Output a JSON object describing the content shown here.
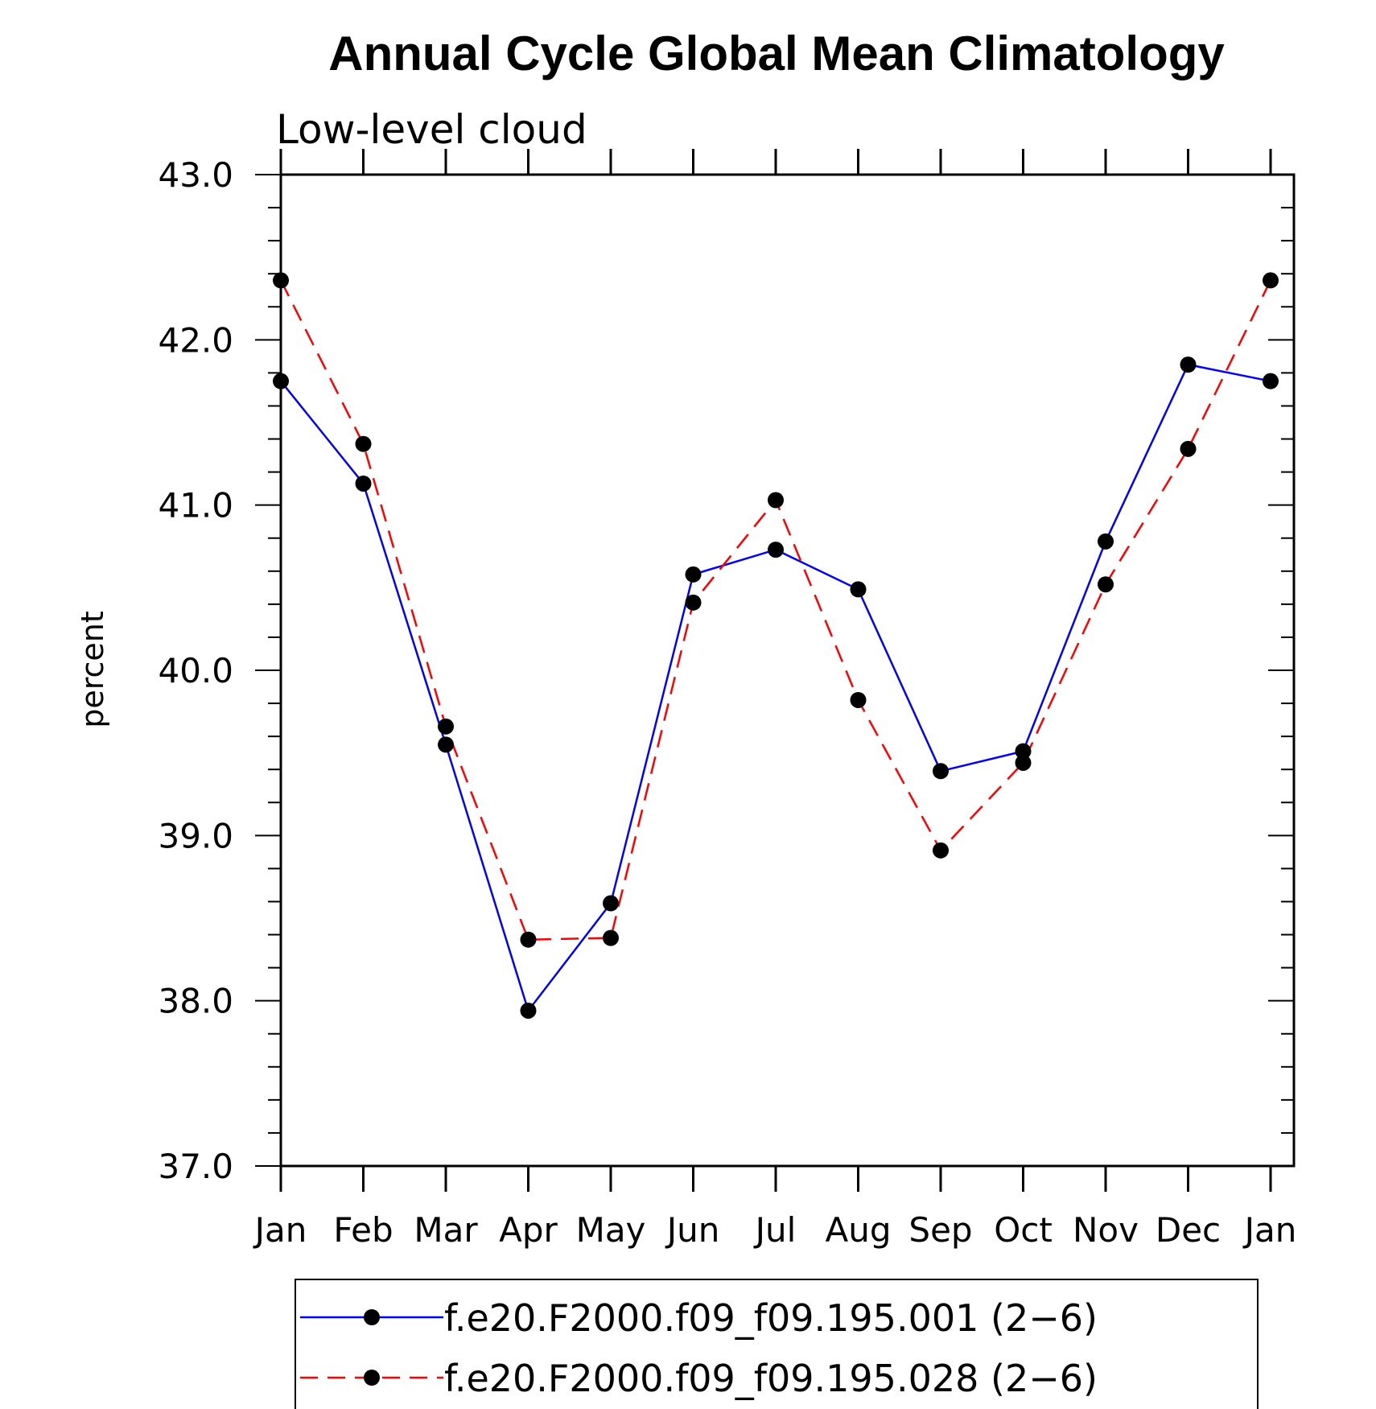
{
  "chart_data": {
    "type": "line",
    "title": "Annual Cycle Global Mean Climatology",
    "subtitle": "Low-level cloud",
    "xlabel": "",
    "ylabel": "percent",
    "ylim": [
      37.0,
      43.0
    ],
    "yticks": [
      "37.0",
      "38.0",
      "39.0",
      "40.0",
      "41.0",
      "42.0",
      "43.0"
    ],
    "categories": [
      "Jan",
      "Feb",
      "Mar",
      "Apr",
      "May",
      "Jun",
      "Jul",
      "Aug",
      "Sep",
      "Oct",
      "Nov",
      "Dec",
      "Jan"
    ],
    "grid": false,
    "legend_position": "bottom",
    "series": [
      {
        "name": "f.e20.F2000.f09_f09.195.001 (2−6)",
        "color": "#0000ff",
        "line_style": "solid",
        "marker": "filled-circle",
        "values": [
          41.75,
          41.13,
          39.55,
          37.94,
          38.59,
          40.58,
          40.73,
          40.49,
          39.39,
          39.51,
          40.78,
          41.85,
          41.75
        ]
      },
      {
        "name": "f.e20.F2000.f09_f09.195.028 (2−6)",
        "color": "#ff0000",
        "line_style": "dashed",
        "marker": "filled-circle",
        "values": [
          42.36,
          41.37,
          39.66,
          38.37,
          38.38,
          40.41,
          41.03,
          39.82,
          38.91,
          39.44,
          40.52,
          41.34,
          42.36
        ]
      }
    ]
  }
}
